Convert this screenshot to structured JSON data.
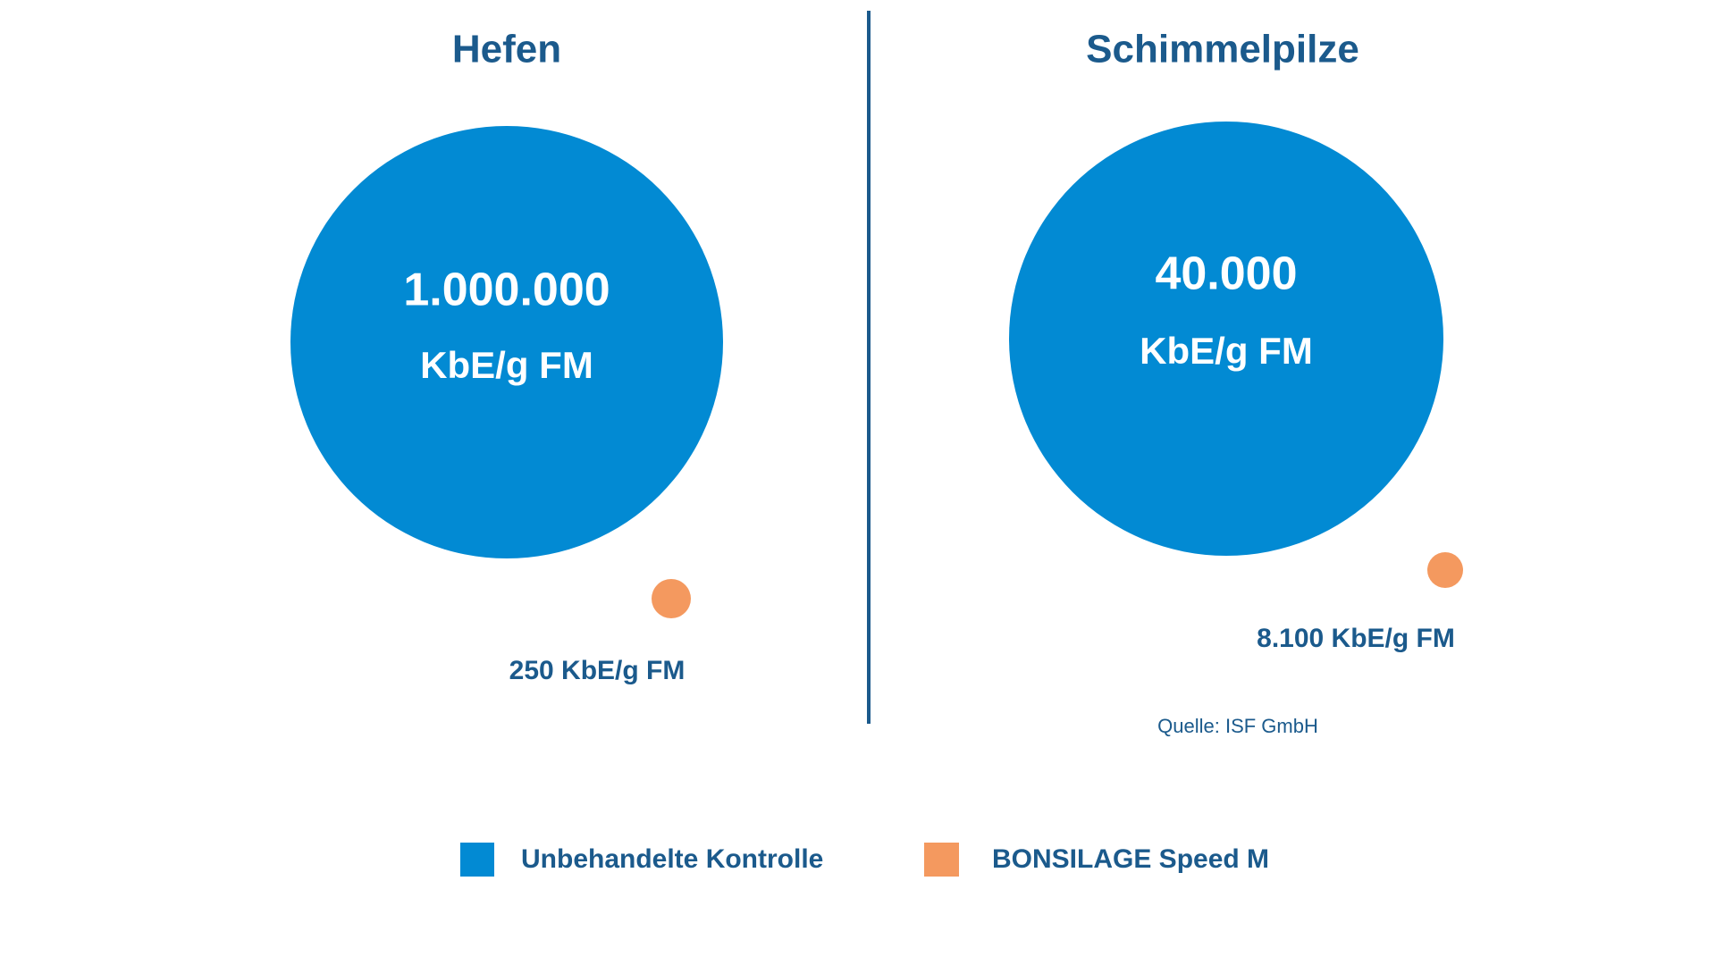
{
  "panels": [
    {
      "title": "Hefen",
      "control": {
        "value": "1.000.000",
        "unit": "KbE/g FM"
      },
      "treated": "250 KbE/g FM"
    },
    {
      "title": "Schimmelpilze",
      "control": {
        "value": "40.000",
        "unit": "KbE/g FM"
      },
      "treated": "8.100 KbE/g FM"
    }
  ],
  "source": "Quelle: ISF GmbH",
  "legend": [
    "Unbehandelte Kontrolle",
    "BONSILAGE Speed M"
  ]
}
